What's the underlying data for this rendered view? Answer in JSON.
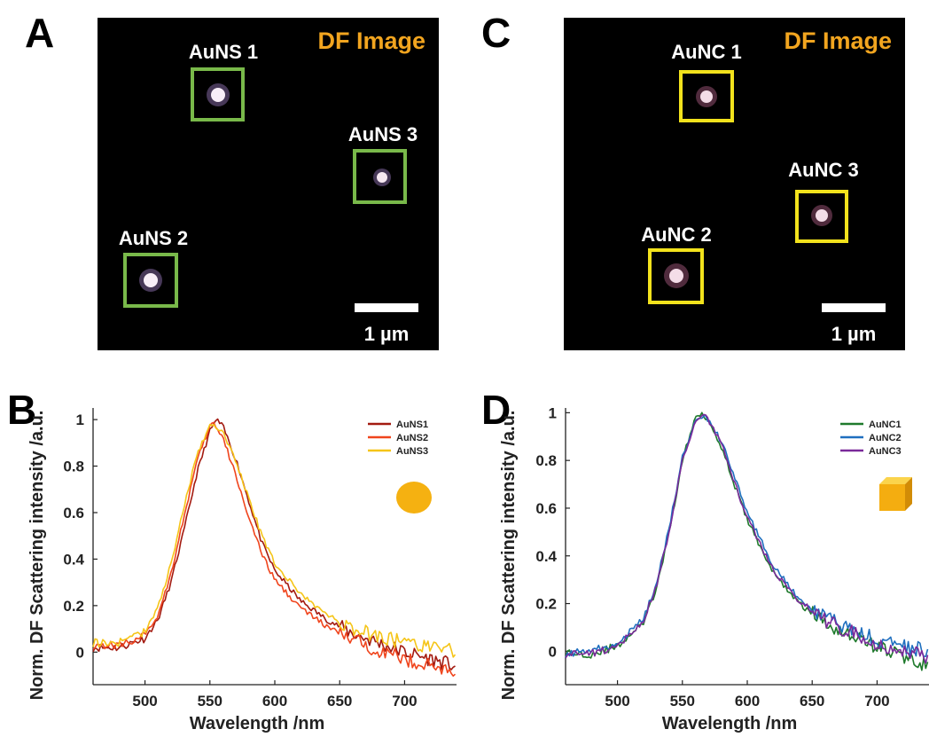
{
  "panels": {
    "a": {
      "letter": "A",
      "title": "DF Image",
      "scale_label": "1 µm",
      "box_color": "#79b94a",
      "spots": [
        {
          "label": "AuNS 1"
        },
        {
          "label": "AuNS 2"
        },
        {
          "label": "AuNS 3"
        }
      ]
    },
    "c": {
      "letter": "C",
      "title": "DF Image",
      "scale_label": "1 µm",
      "box_color": "#f2e21c",
      "spots": [
        {
          "label": "AuNC 1"
        },
        {
          "label": "AuNC 2"
        },
        {
          "label": "AuNC 3"
        }
      ]
    },
    "b": {
      "letter": "B"
    },
    "d": {
      "letter": "D"
    }
  },
  "chart_data": [
    {
      "type": "line",
      "panel": "B",
      "xlabel": "Wavelength /nm",
      "ylabel": "Norm. DF Scattering intensity /a.u.",
      "xlim": [
        460,
        740
      ],
      "ylim": [
        -0.14,
        1.05
      ],
      "xticks": [
        "500",
        "550",
        "600",
        "650",
        "700"
      ],
      "yticks": [
        "0",
        "0.2",
        "0.4",
        "0.6",
        "0.8",
        "1"
      ],
      "legend_position": "top-right",
      "shape_icon": "sphere-icon",
      "series": [
        {
          "name": "AuNS1",
          "color": "#a31a10",
          "peak": 555,
          "x": [
            460,
            480,
            500,
            510,
            520,
            530,
            540,
            550,
            555,
            560,
            570,
            580,
            590,
            600,
            620,
            640,
            660,
            680,
            700,
            720,
            740
          ],
          "values": [
            0.02,
            0.02,
            0.06,
            0.14,
            0.3,
            0.52,
            0.77,
            0.95,
            1.0,
            0.97,
            0.83,
            0.65,
            0.47,
            0.35,
            0.22,
            0.14,
            0.08,
            0.04,
            0.0,
            -0.03,
            -0.06
          ]
        },
        {
          "name": "AuNS2",
          "color": "#f0451d",
          "peak": 552,
          "x": [
            460,
            480,
            500,
            510,
            520,
            530,
            540,
            550,
            552,
            560,
            570,
            580,
            590,
            600,
            620,
            640,
            660,
            680,
            700,
            720,
            740
          ],
          "values": [
            0.03,
            0.03,
            0.07,
            0.16,
            0.34,
            0.58,
            0.82,
            0.97,
            0.99,
            0.92,
            0.76,
            0.58,
            0.42,
            0.31,
            0.19,
            0.11,
            0.05,
            0.01,
            -0.03,
            -0.06,
            -0.09
          ]
        },
        {
          "name": "AuNS3",
          "color": "#f5c518",
          "peak": 550,
          "x": [
            460,
            480,
            500,
            510,
            520,
            530,
            540,
            550,
            560,
            570,
            580,
            590,
            600,
            620,
            640,
            660,
            680,
            700,
            720,
            740
          ],
          "values": [
            0.04,
            0.04,
            0.09,
            0.19,
            0.38,
            0.62,
            0.85,
            0.98,
            0.95,
            0.82,
            0.66,
            0.5,
            0.38,
            0.25,
            0.16,
            0.1,
            0.07,
            0.04,
            0.02,
            0.0
          ]
        }
      ]
    },
    {
      "type": "line",
      "panel": "D",
      "xlabel": "Wavelength /nm",
      "ylabel": "Norm. DF Scattering intensity /a.u.",
      "xlim": [
        460,
        740
      ],
      "ylim": [
        -0.14,
        1.02
      ],
      "xticks": [
        "500",
        "550",
        "600",
        "650",
        "700"
      ],
      "yticks": [
        "0",
        "0.2",
        "0.4",
        "0.6",
        "0.8",
        "1"
      ],
      "legend_position": "top-right",
      "shape_icon": "cube-icon",
      "series": [
        {
          "name": "AuNC1",
          "color": "#1f7a2c",
          "x": [
            460,
            480,
            500,
            520,
            530,
            540,
            550,
            560,
            565,
            570,
            580,
            590,
            600,
            620,
            640,
            660,
            680,
            700,
            720,
            740
          ],
          "values": [
            -0.01,
            -0.01,
            0.02,
            0.12,
            0.26,
            0.5,
            0.8,
            0.98,
            1.0,
            0.97,
            0.86,
            0.7,
            0.55,
            0.33,
            0.2,
            0.12,
            0.07,
            0.02,
            -0.02,
            -0.06
          ]
        },
        {
          "name": "AuNC2",
          "color": "#1f6fbf",
          "x": [
            460,
            480,
            500,
            520,
            530,
            540,
            550,
            560,
            566,
            570,
            580,
            590,
            600,
            620,
            640,
            660,
            680,
            700,
            720,
            740
          ],
          "values": [
            -0.01,
            0.0,
            0.03,
            0.14,
            0.28,
            0.52,
            0.81,
            0.97,
            0.99,
            0.97,
            0.88,
            0.73,
            0.58,
            0.36,
            0.22,
            0.14,
            0.09,
            0.05,
            0.02,
            0.0
          ]
        },
        {
          "name": "AuNC3",
          "color": "#7a2a9a",
          "x": [
            460,
            480,
            500,
            520,
            530,
            540,
            550,
            560,
            567,
            570,
            580,
            590,
            600,
            620,
            640,
            660,
            680,
            700,
            720,
            740
          ],
          "values": [
            -0.01,
            -0.01,
            0.02,
            0.13,
            0.27,
            0.51,
            0.8,
            0.97,
            0.99,
            0.97,
            0.87,
            0.71,
            0.56,
            0.34,
            0.21,
            0.13,
            0.08,
            0.03,
            0.0,
            -0.02
          ]
        }
      ]
    }
  ]
}
